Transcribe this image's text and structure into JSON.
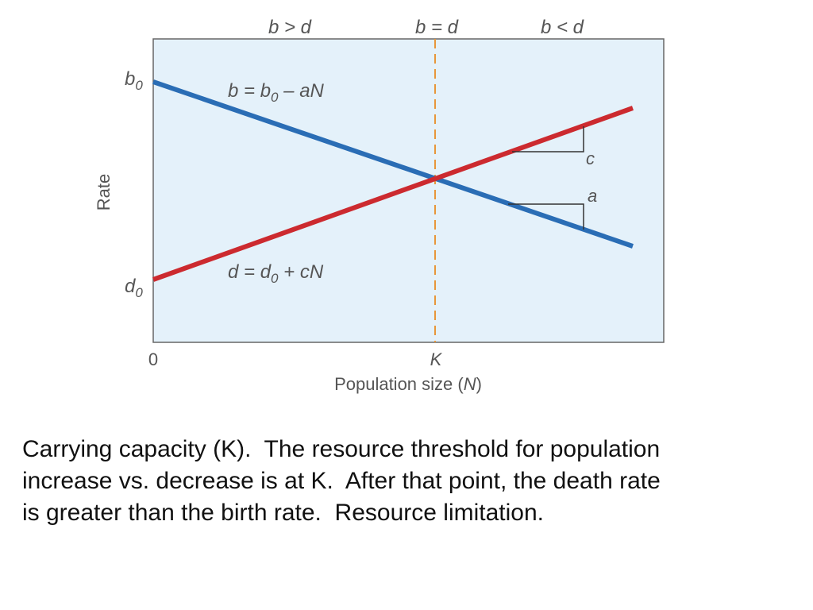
{
  "diagram": {
    "regions": [
      {
        "text": "b > d"
      },
      {
        "text": "b = d"
      },
      {
        "text": "b < d"
      }
    ],
    "y_axis_label": "Rate",
    "x_axis_label_prefix": "Population size (",
    "x_axis_label_var": "N",
    "x_axis_label_suffix": ")",
    "x_ticks": {
      "zero": "0",
      "k": "K"
    },
    "y_ticks": {
      "b0": {
        "main": "b",
        "sub": "0"
      },
      "d0": {
        "main": "d",
        "sub": "0"
      }
    },
    "birth_line": {
      "eq_pre": "b = b",
      "eq_sub": "0",
      "eq_post": " – aN",
      "color": "#2a6db5",
      "slope_label": "a"
    },
    "death_line": {
      "eq_pre": "d = d",
      "eq_sub": "0",
      "eq_post": " + cN",
      "color": "#cc2a2f",
      "slope_label": "c"
    },
    "k_line_color": "#e8963a",
    "plot_background": "#e4f1fa"
  },
  "caption": {
    "lines": [
      "Carrying capacity (K).  The resource threshold for population",
      "increase vs. decrease is at K.  After that point, the death rate",
      "is greater than the birth rate.  Resource limitation."
    ]
  }
}
